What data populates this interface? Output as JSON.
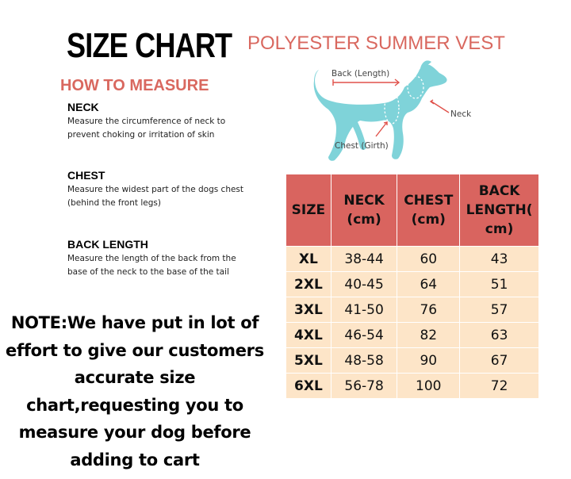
{
  "header": {
    "title": "SIZE CHART",
    "product_title": "POLYESTER SUMMER VEST",
    "how_to_measure": "HOW TO MEASURE"
  },
  "measurements": [
    {
      "heading": "NECK",
      "description": "Measure the circumference of neck to prevent choking or irritation of skin"
    },
    {
      "heading": "CHEST",
      "description": "Measure the widest part of the dogs chest (behind the front legs)"
    },
    {
      "heading": "BACK LENGTH",
      "description": "Measure the length of the back from the base of the neck to the base of the tail"
    }
  ],
  "diagram": {
    "back_label": "Back (Length)",
    "neck_label": "Neck",
    "chest_label": "Chest (Girth)",
    "dog_color": "#7fd3d9",
    "arrow_color": "#e0514a",
    "icon": "dog-silhouette-icon"
  },
  "size_table": {
    "headers": [
      "SIZE",
      "NECK (cm)",
      "CHEST (cm)",
      "BACK LENGTH( cm)"
    ],
    "rows": [
      [
        "XL",
        "38-44",
        "60",
        "43"
      ],
      [
        "2XL",
        "40-45",
        "64",
        "51"
      ],
      [
        "3XL",
        "41-50",
        "76",
        "57"
      ],
      [
        "4XL",
        "46-54",
        "82",
        "63"
      ],
      [
        "5XL",
        "48-58",
        "90",
        "67"
      ],
      [
        "6XL",
        "56-78",
        "100",
        "72"
      ]
    ],
    "header_color": "#d9645f",
    "row_color": "#fde5c8"
  },
  "note": "NOTE:We have put in lot of effort to give our customers accurate size chart,requesting you to measure your dog before adding to cart"
}
